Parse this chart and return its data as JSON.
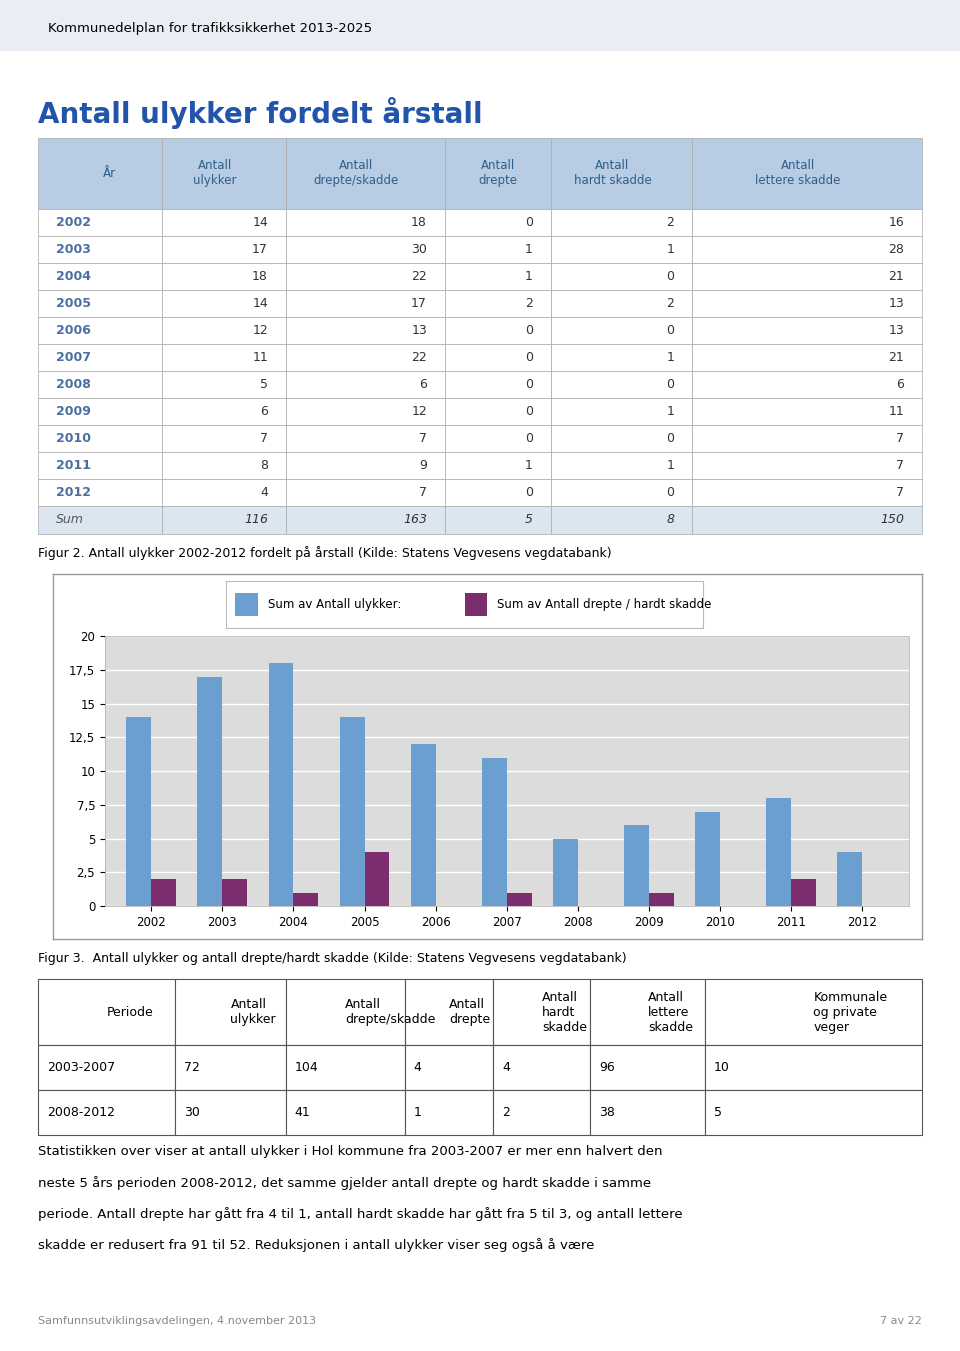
{
  "page_title": "Kommunedelplan for trafikksikkerhet 2013-2025",
  "section_title": "Antall ulykker fordelt årstall",
  "table1_data": [
    [
      "2002",
      14,
      18,
      0,
      2,
      16
    ],
    [
      "2003",
      17,
      30,
      1,
      1,
      28
    ],
    [
      "2004",
      18,
      22,
      1,
      0,
      21
    ],
    [
      "2005",
      14,
      17,
      2,
      2,
      13
    ],
    [
      "2006",
      12,
      13,
      0,
      0,
      13
    ],
    [
      "2007",
      11,
      22,
      0,
      1,
      21
    ],
    [
      "2008",
      5,
      6,
      0,
      0,
      6
    ],
    [
      "2009",
      6,
      12,
      0,
      1,
      11
    ],
    [
      "2010",
      7,
      7,
      0,
      0,
      7
    ],
    [
      "2011",
      8,
      9,
      1,
      1,
      7
    ],
    [
      "2012",
      4,
      7,
      0,
      0,
      7
    ]
  ],
  "table1_sum": [
    "Sum",
    116,
    163,
    5,
    8,
    150
  ],
  "fig2_caption": "Figur 2. Antall ulykker 2002-2012 fordelt på årstall (Kilde: Statens Vegvesens vegdatabank)",
  "chart_years": [
    "2002",
    "2003",
    "2004",
    "2005",
    "2006",
    "2007",
    "2008",
    "2009",
    "2010",
    "2011",
    "2012"
  ],
  "chart_ulykker": [
    14,
    17,
    18,
    14,
    12,
    11,
    5,
    6,
    7,
    8,
    4
  ],
  "chart_drepte_hardt": [
    2,
    2,
    1,
    4,
    0,
    1,
    0,
    1,
    0,
    2,
    0
  ],
  "chart_bar_color_blue": "#6b9fcf",
  "chart_bar_color_purple": "#7b2d6e",
  "chart_bg_color": "#dcdcdc",
  "chart_legend_label1": "Sum av Antall ulykker:",
  "chart_legend_label2": "Sum av Antall drepte / hardt skadde",
  "chart_ylim": [
    0,
    20
  ],
  "chart_yticks": [
    0,
    2.5,
    5,
    7.5,
    10,
    12.5,
    15,
    17.5,
    20
  ],
  "fig3_caption": "Figur 3.  Antall ulykker og antall drepte/hardt skadde (Kilde: Statens Vegvesens vegdatabank)",
  "table2_data": [
    [
      "2003-2007",
      72,
      104,
      4,
      4,
      96,
      10
    ],
    [
      "2008-2012",
      30,
      41,
      1,
      2,
      38,
      5
    ]
  ],
  "paragraph_lines": [
    "Statistikken over viser at antall ulykker i Hol kommune fra 2003-2007 er mer enn halvert den",
    "neste 5 års perioden 2008-2012, det samme gjelder antall drepte og hardt skadde i samme",
    "periode. Antall drepte har gått fra 4 til 1, antall hardt skadde har gått fra 5 til 3, og antall lettere",
    "skadde er redusert fra 91 til 52. Reduksjonen i antall ulykker viser seg også å være"
  ],
  "footer_left": "Samfunnsutviklingsavdelingen, 4.november 2013",
  "footer_right": "7 av 22",
  "header_bg_color": "#b8cce4",
  "sum_bg_color": "#dce6f1",
  "header_text_color": "#2e5f8a",
  "year_text_color": "#4a6fa0",
  "title_color": "#2255aa"
}
